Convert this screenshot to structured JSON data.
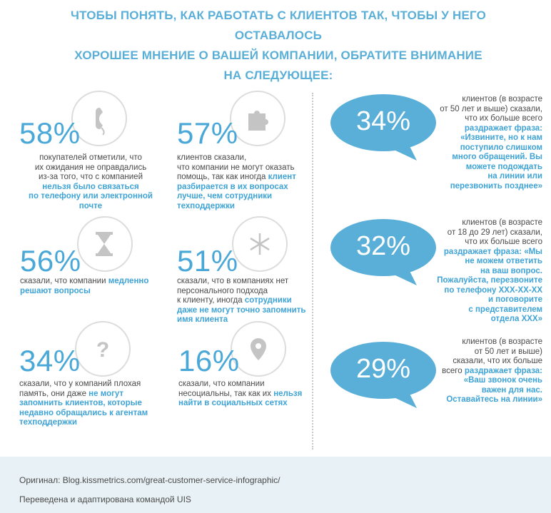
{
  "title": {
    "line1": "ЧТОБЫ ПОНЯТЬ, КАК РАБОТАТЬ С КЛИЕНТОВ ТАК, ЧТОБЫ У НЕГО ОСТАВАЛОСЬ",
    "line2": "ХОРОШЕЕ МНЕНИЕ О ВАШЕЙ КОМПАНИИ, ОБРАТИТЕ ВНИМАНИЕ",
    "line3": "НА СЛЕДУЮЩЕЕ:"
  },
  "stats": [
    {
      "pct": "58%",
      "icon": "phone-icon",
      "t1": "покупателей отметили, что",
      "t2": "их ожидания не оправдались",
      "t3": "из-за того, что с компанией",
      "h1": "нельзя было связаться",
      "h2": "по телефону или электронной",
      "h3": "почте"
    },
    {
      "pct": "57%",
      "icon": "puzzle-icon",
      "t1": "клиентов сказали,",
      "t2": "что компании не могут оказать",
      "t3": "помощь, так как иногда",
      "h0": "клиент",
      "h1": "разбирается в их вопросах",
      "h2": "лучше, чем сотрудники",
      "h3": "техподдержки"
    },
    {
      "pct": "56%",
      "icon": "hourglass-icon",
      "t1": "сказали, что компании",
      "h1": "медленно",
      "h2": "решают вопросы"
    },
    {
      "pct": "51%",
      "icon": "snowflake-icon",
      "t1": "сказали, что в компаниях нет",
      "t2": "персонального подхода",
      "t3": "к клиенту, иногда",
      "h0": "сотрудники",
      "h1": "даже не могут точно запомнить",
      "h2": "имя клиента"
    },
    {
      "pct": "34%",
      "icon": "question-icon",
      "t1": "сказали, что у компаний плохая",
      "t2": "память, они даже",
      "h0": "не могут",
      "h1": "запомнить клиентов, которые",
      "h2": "недавно обращались к агентам",
      "h3": "техподдержки"
    },
    {
      "pct": "16%",
      "icon": "location-pin-icon",
      "t1": "сказали, что компании",
      "t2": "несоциальны, так как их",
      "h0": "нельзя",
      "h1": "найти в социальных сетях"
    }
  ],
  "bubbles": [
    {
      "pct": "34%",
      "t1": "клиентов (в возрасте",
      "t2": "от 50 лет и выше) сказали,",
      "t3": "что их больше всего",
      "h1": "раздражает фраза:",
      "h2": "«Извините, но к нам",
      "h3": "поступило слишком",
      "h4": "много обращений. Вы",
      "h5": "можете подождать",
      "h6": "на линии или",
      "h7": "перезвонить позднее»"
    },
    {
      "pct": "32%",
      "t1": "клиентов (в возрасте",
      "t2": "от 18 до 29 лет) сказали,",
      "t3": "что их больше всего",
      "h1": "раздражает фраза: «Мы",
      "h2": "не можем ответить",
      "h3": "на ваш вопрос.",
      "h4": "Пожалуйста, перезвоните",
      "h5": "по телефону XXX-XX-XX",
      "h6": "и поговорите",
      "h7": "с представителем",
      "h8": "отдела XXX»"
    },
    {
      "pct": "29%",
      "t1": "клиентов (в возрасте",
      "t2": "от 50 лет и выше)",
      "t3": "сказали, что их больше",
      "t4": "всего",
      "h0": "раздражает фраза:",
      "h1": "«Ваш звонок очень",
      "h2": "важен для нас.",
      "h3": "Оставайтесь на линии»"
    }
  ],
  "footer": {
    "source": "Оригинал: Blog.kissmetrics.com/great-customer-service-infographic/",
    "credit": "Переведена и адаптирована командой UIS"
  },
  "colors": {
    "accent": "#4aa8d8",
    "bubble": "#5aafd8",
    "footer_bg": "#e8f1f5"
  }
}
